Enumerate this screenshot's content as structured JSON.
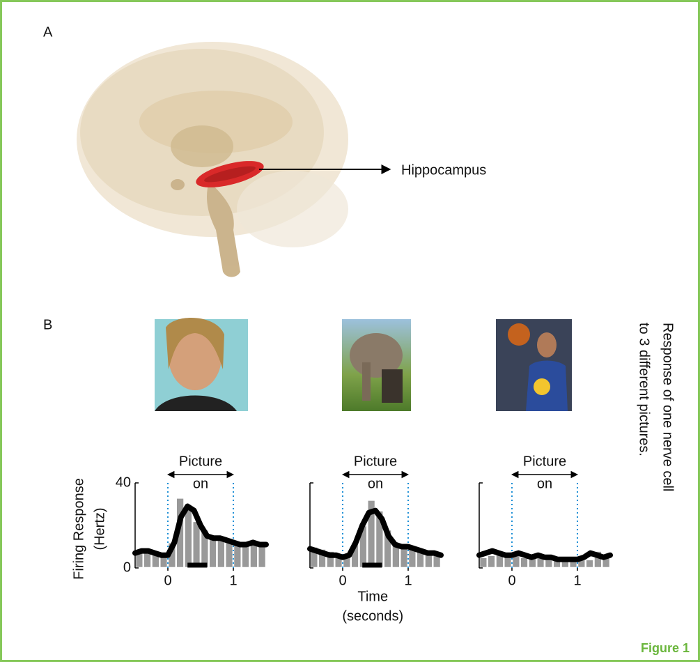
{
  "panels": {
    "a_label": "A",
    "b_label": "B"
  },
  "brain": {
    "label": "Hippocampus"
  },
  "side_text": [
    "Response of one nerve cell",
    "to 3 different pictures."
  ],
  "figure_label": "Figure 1",
  "chart_data": [
    {
      "type": "histogram",
      "bins": [
        -0.5,
        -0.375,
        -0.25,
        -0.125,
        0,
        0.125,
        0.25,
        0.375,
        0.5,
        0.625,
        0.75,
        0.875,
        1,
        1.125,
        1.25,
        1.375,
        1.5
      ],
      "values": [
        8,
        8,
        8,
        7,
        12,
        33,
        28,
        22,
        18,
        14,
        14,
        12,
        12,
        11,
        12,
        11
      ],
      "color": "#999999",
      "curve": {
        "color": "#000000",
        "x": [
          -0.5,
          -0.4,
          -0.3,
          -0.2,
          -0.1,
          0,
          0.1,
          0.2,
          0.3,
          0.4,
          0.5,
          0.6,
          0.7,
          0.8,
          0.9,
          1,
          1.1,
          1.2,
          1.3,
          1.4,
          1.5
        ],
        "values": [
          7,
          8,
          8,
          7,
          6,
          6,
          12,
          24,
          29,
          27,
          20,
          15,
          14,
          14,
          13,
          12,
          11,
          11,
          12,
          11,
          11
        ]
      },
      "xlim": [
        -0.5,
        1.5
      ],
      "ylim": [
        0,
        40
      ],
      "xticks": [
        0,
        1
      ],
      "yticks": [
        0,
        40
      ],
      "stimulus_window": [
        0,
        1
      ],
      "annotation": [
        "Picture",
        "on"
      ],
      "response_bar": [
        0.3,
        0.6
      ],
      "ylabel": [
        "Firing Response",
        "(Hertz)"
      ]
    },
    {
      "type": "histogram",
      "bins": [
        -0.5,
        -0.375,
        -0.25,
        -0.125,
        0,
        0.125,
        0.25,
        0.375,
        0.5,
        0.625,
        0.75,
        0.875,
        1,
        1.125,
        1.25,
        1.375,
        1.5
      ],
      "values": [
        10,
        9,
        8,
        6,
        6,
        12,
        20,
        32,
        27,
        18,
        11,
        10,
        9,
        8,
        8,
        7
      ],
      "color": "#999999",
      "curve": {
        "color": "#000000",
        "x": [
          -0.5,
          -0.4,
          -0.3,
          -0.2,
          -0.1,
          0,
          0.1,
          0.2,
          0.3,
          0.4,
          0.5,
          0.6,
          0.7,
          0.8,
          0.9,
          1,
          1.1,
          1.2,
          1.3,
          1.4,
          1.5
        ],
        "values": [
          9,
          8,
          7,
          6,
          6,
          5,
          6,
          12,
          20,
          26,
          27,
          23,
          15,
          11,
          10,
          10,
          9,
          8,
          7,
          7,
          6
        ]
      },
      "xlim": [
        -0.5,
        1.5
      ],
      "ylim": [
        0,
        40
      ],
      "xticks": [
        0,
        1
      ],
      "stimulus_window": [
        0,
        1
      ],
      "annotation": [
        "Picture",
        "on"
      ],
      "response_bar": [
        0.3,
        0.6
      ],
      "xlabel": [
        "Time",
        "(seconds)"
      ]
    },
    {
      "type": "histogram",
      "bins": [
        -0.5,
        -0.375,
        -0.25,
        -0.125,
        0,
        0.125,
        0.25,
        0.375,
        0.5,
        0.625,
        0.75,
        0.875,
        1,
        1.125,
        1.25,
        1.375,
        1.5
      ],
      "values": [
        5,
        6,
        7,
        6,
        6,
        5,
        6,
        5,
        5,
        5,
        4,
        4,
        4,
        4,
        8,
        5
      ],
      "color": "#999999",
      "curve": {
        "color": "#000000",
        "x": [
          -0.5,
          -0.4,
          -0.3,
          -0.2,
          -0.1,
          0,
          0.1,
          0.2,
          0.3,
          0.4,
          0.5,
          0.6,
          0.7,
          0.8,
          0.9,
          1,
          1.1,
          1.2,
          1.3,
          1.4,
          1.5
        ],
        "values": [
          6,
          7,
          8,
          7,
          6,
          6,
          7,
          6,
          5,
          6,
          5,
          5,
          4,
          4,
          4,
          4,
          5,
          7,
          6,
          5,
          6
        ]
      },
      "xlim": [
        -0.5,
        1.5
      ],
      "ylim": [
        0,
        40
      ],
      "xticks": [
        0,
        1
      ],
      "stimulus_window": [
        0,
        1
      ],
      "annotation": [
        "Picture",
        "on"
      ]
    }
  ]
}
